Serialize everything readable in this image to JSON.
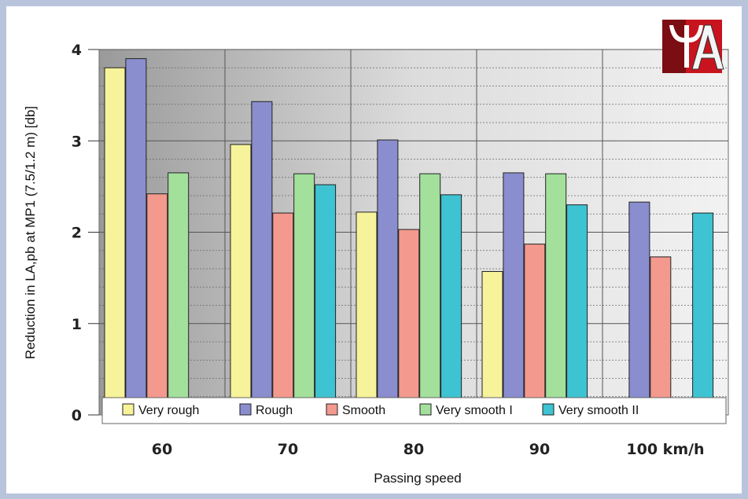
{
  "chart_data": {
    "type": "bar",
    "categories": [
      "60",
      "70",
      "80",
      "90",
      "100 km/h"
    ],
    "series": [
      {
        "name": "Very rough",
        "color": "#f7f39a",
        "values": [
          3.8,
          2.96,
          2.22,
          1.57,
          null
        ]
      },
      {
        "name": "Rough",
        "color": "#8a8ecf",
        "values": [
          3.9,
          3.43,
          3.01,
          2.65,
          2.33
        ]
      },
      {
        "name": "Smooth",
        "color": "#f4998d",
        "values": [
          2.42,
          2.21,
          2.03,
          1.87,
          1.73
        ]
      },
      {
        "name": "Very smooth I",
        "color": "#a3e09c",
        "values": [
          2.65,
          2.64,
          2.64,
          2.64,
          null
        ]
      },
      {
        "name": "Very smooth II",
        "color": "#3ec3d2",
        "values": [
          null,
          2.52,
          2.41,
          2.3,
          2.21
        ]
      }
    ],
    "title": "",
    "xlabel": "Passing speed",
    "ylabel": "Reduction in LA,pb at MP1 (7.5/1.2 m) [db]",
    "ylim": [
      0,
      4
    ],
    "yticks": [
      0,
      1,
      2,
      3,
      4
    ],
    "grid": true,
    "legend": "bottom"
  },
  "logo": {
    "name": "logo-mark",
    "text": "ΨA"
  }
}
